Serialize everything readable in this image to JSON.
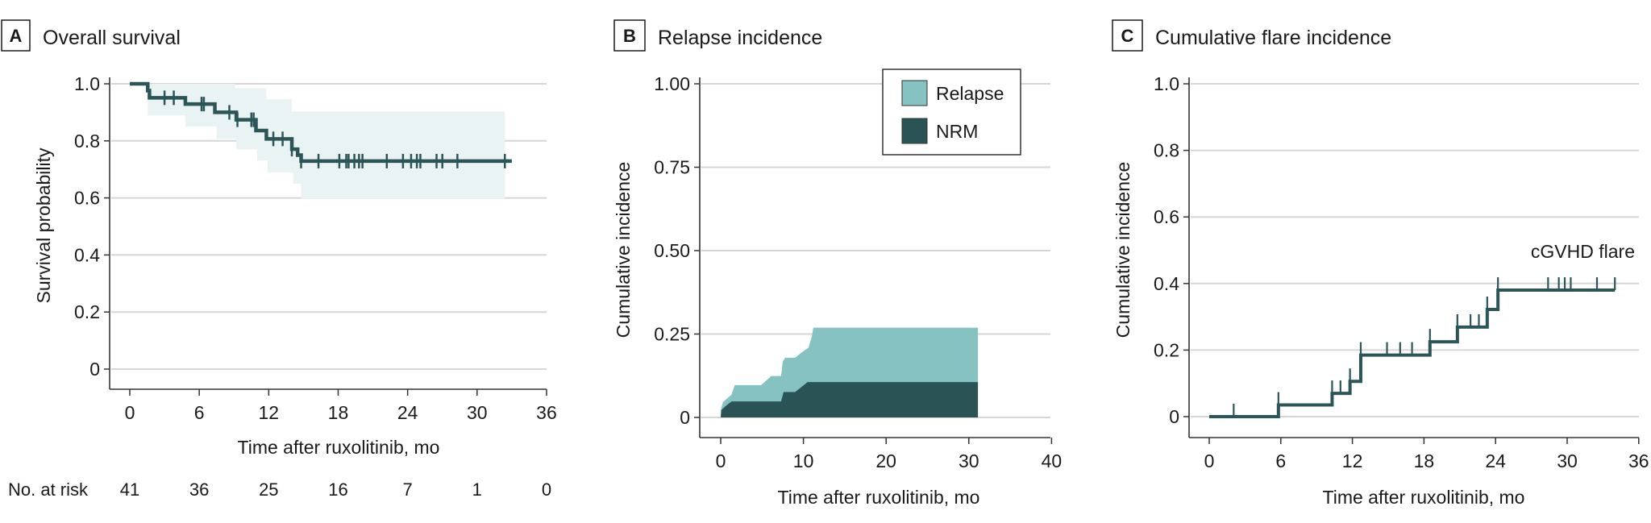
{
  "figure": {
    "panels": [
      {
        "letter": "A",
        "title": "Overall survival"
      },
      {
        "letter": "B",
        "title": "Relapse incidence"
      },
      {
        "letter": "C",
        "title": "Cumulative flare incidence"
      }
    ]
  },
  "colors": {
    "line": "#2B5557",
    "ci_band": "#EAF3F4",
    "relapse": "#85C2C1",
    "nrm": "#2A5355",
    "gridline": "#D6D6D6",
    "axis": "#333333"
  },
  "number_at_risk": {
    "label": "No. at risk",
    "values": [
      "41",
      "36",
      "25",
      "16",
      "7",
      "1",
      "0"
    ]
  },
  "chart_data": [
    {
      "panel": "A",
      "type": "line",
      "subtype": "kaplan-meier step",
      "title": "Overall survival",
      "xlabel": "Time after ruxolitinib, mo",
      "ylabel": "Survival probability",
      "xlim": [
        0,
        36
      ],
      "ylim": [
        0,
        1.0
      ],
      "xticks": [
        "0",
        "6",
        "12",
        "18",
        "24",
        "30",
        "36"
      ],
      "yticks": [
        "0",
        "0.2",
        "0.4",
        "0.6",
        "0.8",
        "1.0"
      ],
      "grid": "horizontal",
      "series": [
        {
          "name": "Overall survival",
          "steps": [
            [
              0,
              1.0
            ],
            [
              1.55,
              0.976
            ],
            [
              1.7,
              0.951
            ],
            [
              4.8,
              0.929
            ],
            [
              7.35,
              0.9
            ],
            [
              9.2,
              0.874
            ],
            [
              10.9,
              0.836
            ],
            [
              11.8,
              0.807
            ],
            [
              14.0,
              0.771
            ],
            [
              14.5,
              0.75
            ],
            [
              14.8,
              0.729
            ],
            [
              33.0,
              0.729
            ]
          ],
          "censor_times": [
            3.0,
            3.8,
            6.2,
            6.4,
            8.6,
            9.3,
            10.5,
            10.7,
            12.4,
            13.2,
            14.0,
            14.8,
            16.3,
            18.1,
            18.7,
            18.9,
            19.4,
            19.8,
            20.1,
            22.2,
            23.6,
            24.3,
            24.8,
            25.1,
            26.5,
            27.0,
            28.3,
            32.4
          ],
          "ci_upper": [
            [
              1.55,
              1.0
            ],
            [
              9.1,
              0.984
            ],
            [
              11.8,
              0.946
            ],
            [
              14.0,
              0.903
            ],
            [
              32.4,
              0.903
            ]
          ],
          "ci_lower": [
            [
              1.55,
              0.889
            ],
            [
              4.8,
              0.85
            ],
            [
              7.5,
              0.807
            ],
            [
              9.2,
              0.77
            ],
            [
              11.0,
              0.731
            ],
            [
              11.9,
              0.689
            ],
            [
              14.1,
              0.65
            ],
            [
              14.8,
              0.598
            ],
            [
              32.4,
              0.598
            ]
          ]
        }
      ],
      "number_at_risk": {
        "times": [
          0,
          6,
          12,
          18,
          24,
          30,
          36
        ],
        "values": [
          41,
          36,
          25,
          16,
          7,
          1,
          0
        ]
      }
    },
    {
      "panel": "B",
      "type": "area",
      "subtype": "stacked cumulative incidence",
      "title": "Relapse incidence",
      "xlabel": "Time after ruxolitinib, mo",
      "ylabel": "Cumulative incidence",
      "xlim": [
        0,
        40
      ],
      "ylim": [
        0,
        1.0
      ],
      "xticks": [
        "0",
        "10",
        "20",
        "30",
        "40"
      ],
      "yticks": [
        "0",
        "0.25",
        "0.50",
        "0.75",
        "1.00"
      ],
      "grid": "horizontal",
      "legend": {
        "position": "top-right",
        "entries": [
          "Relapse",
          "NRM"
        ]
      },
      "series": [
        {
          "name": "NRM",
          "points": [
            [
              0,
              0
            ],
            [
              0.1,
              0.022
            ],
            [
              0.5,
              0.032
            ],
            [
              1.3,
              0.048
            ],
            [
              7.3,
              0.048
            ],
            [
              7.6,
              0.076
            ],
            [
              9.0,
              0.076
            ],
            [
              9.6,
              0.088
            ],
            [
              10.5,
              0.106
            ],
            [
              31.1,
              0.106
            ]
          ]
        },
        {
          "name": "Relapse",
          "note": "stacked on NRM; upper boundary = NRM + Relapse",
          "points": [
            [
              0,
              0
            ],
            [
              0,
              0.022
            ],
            [
              0.27,
              0.046
            ],
            [
              1.3,
              0.068
            ],
            [
              1.7,
              0.097
            ],
            [
              4.9,
              0.097
            ],
            [
              6.1,
              0.124
            ],
            [
              7.3,
              0.124
            ],
            [
              7.5,
              0.167
            ],
            [
              7.8,
              0.179
            ],
            [
              9.0,
              0.179
            ],
            [
              9.8,
              0.195
            ],
            [
              10.6,
              0.209
            ],
            [
              11.0,
              0.24
            ],
            [
              11.2,
              0.269
            ],
            [
              31.1,
              0.269
            ]
          ]
        }
      ]
    },
    {
      "panel": "C",
      "type": "line",
      "subtype": "cumulative incidence step",
      "title": "Cumulative flare incidence",
      "xlabel": "Time after ruxolitinib, mo",
      "ylabel": "Cumulative incidence",
      "xlim": [
        0,
        36
      ],
      "ylim": [
        0,
        1.0
      ],
      "xticks": [
        "0",
        "6",
        "12",
        "18",
        "24",
        "30",
        "36"
      ],
      "yticks": [
        "0",
        "0.2",
        "0.4",
        "0.6",
        "0.8",
        "1.0"
      ],
      "grid": "horizontal",
      "annotations": [
        "cGVHD flare"
      ],
      "series": [
        {
          "name": "cGVHD flare",
          "steps": [
            [
              0,
              0
            ],
            [
              5.8,
              0.035
            ],
            [
              10.3,
              0.07
            ],
            [
              11.8,
              0.106
            ],
            [
              12.7,
              0.185
            ],
            [
              18.5,
              0.225
            ],
            [
              20.8,
              0.269
            ],
            [
              23.3,
              0.322
            ],
            [
              24.2,
              0.38
            ],
            [
              34.0,
              0.38
            ]
          ],
          "censor_times": [
            2.05,
            5.8,
            10.3,
            11.0,
            11.8,
            12.7,
            14.9,
            16.0,
            17.0,
            18.5,
            20.8,
            21.9,
            22.6,
            23.3,
            24.2,
            28.4,
            29.3,
            29.8,
            30.3,
            32.5,
            34.0
          ]
        }
      ]
    }
  ]
}
